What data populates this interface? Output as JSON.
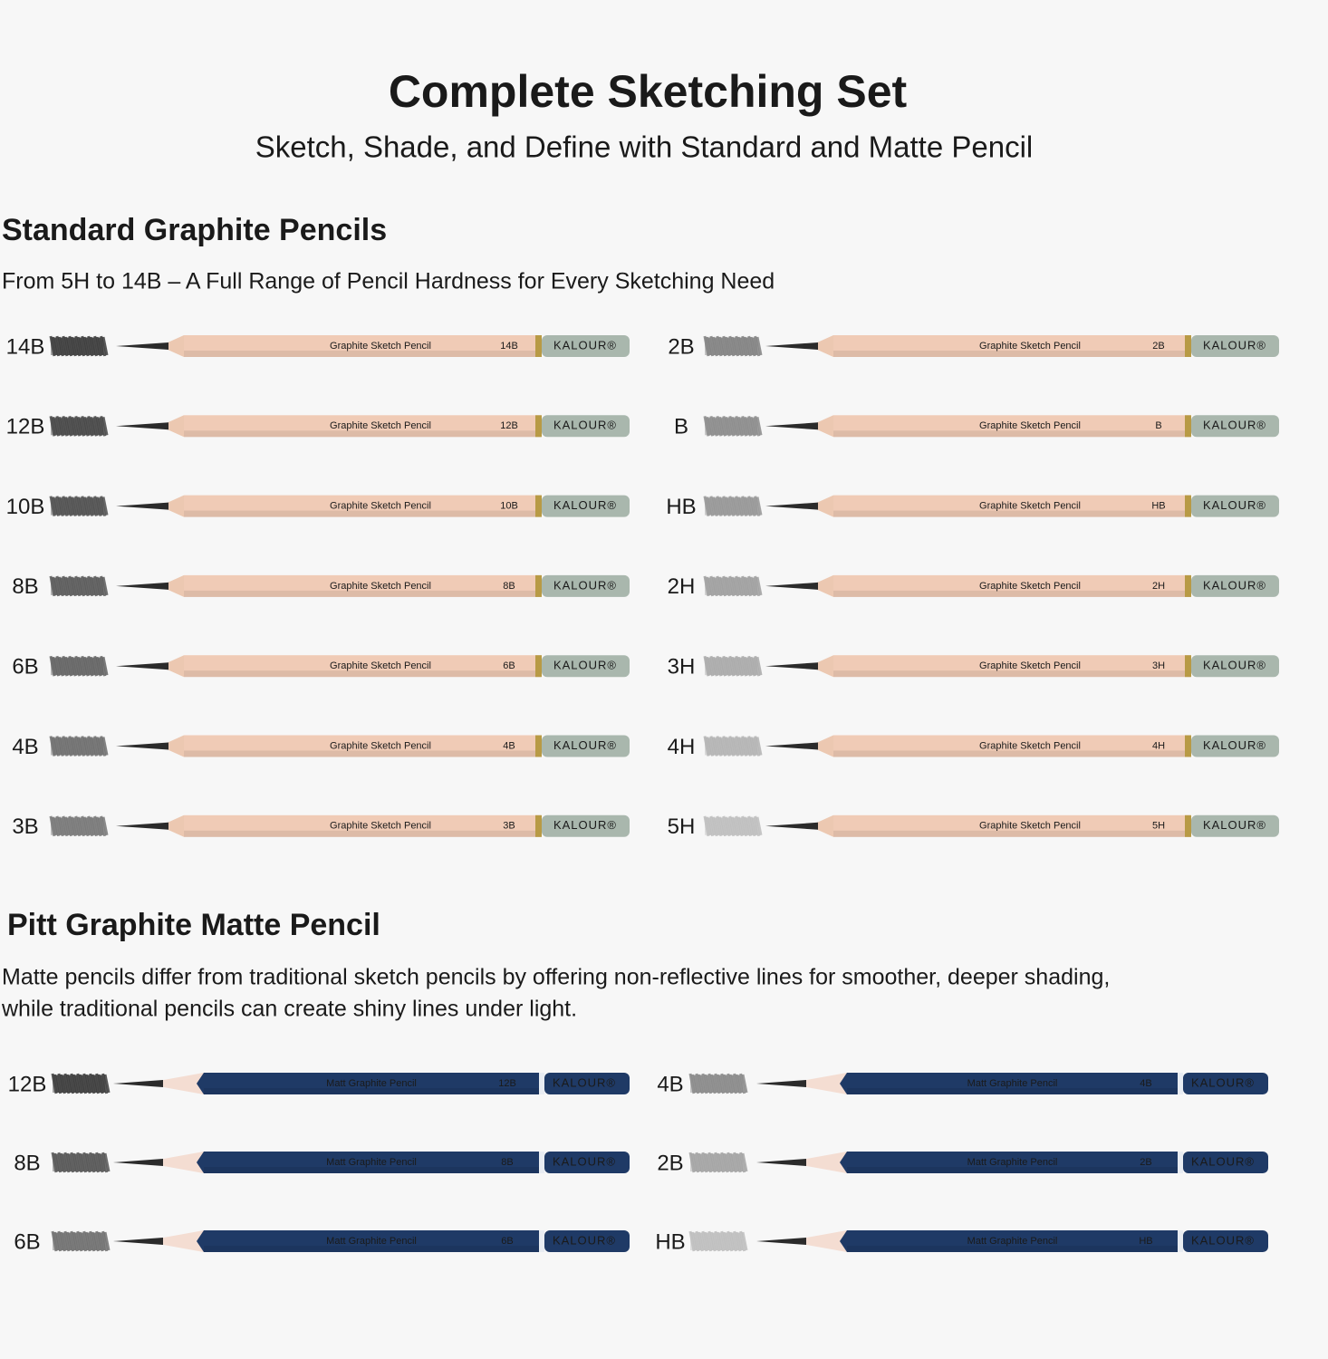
{
  "header": {
    "title": "Complete Sketching Set",
    "subtitle": "Sketch, Shade, and Define with Standard and Matte Pencil"
  },
  "standard": {
    "title": "Standard Graphite Pencils",
    "description": "From 5H to 14B – A Full Range of Pencil Hardness for Every Sketching Need",
    "imprint": "Graphite Sketch Pencil",
    "brand": "KALOUR®",
    "grades": [
      [
        "14B",
        "12B",
        "10B",
        "8B",
        "6B",
        "4B",
        "3B"
      ],
      [
        "2B",
        "B",
        "HB",
        "2H",
        "3H",
        "4H",
        "5H"
      ]
    ]
  },
  "matte": {
    "title": "Pitt Graphite Matte Pencil",
    "description": [
      "Matte pencils differ from traditional sketch pencils by offering non-reflective lines for smoother, deeper shading,",
      "while traditional pencils can create shiny lines under light."
    ],
    "imprint": "Matt Graphite Pencil",
    "brand": "KALOUR®",
    "grades": [
      [
        "12B",
        "8B",
        "6B"
      ],
      [
        "4B",
        "2B",
        "HB"
      ]
    ]
  }
}
